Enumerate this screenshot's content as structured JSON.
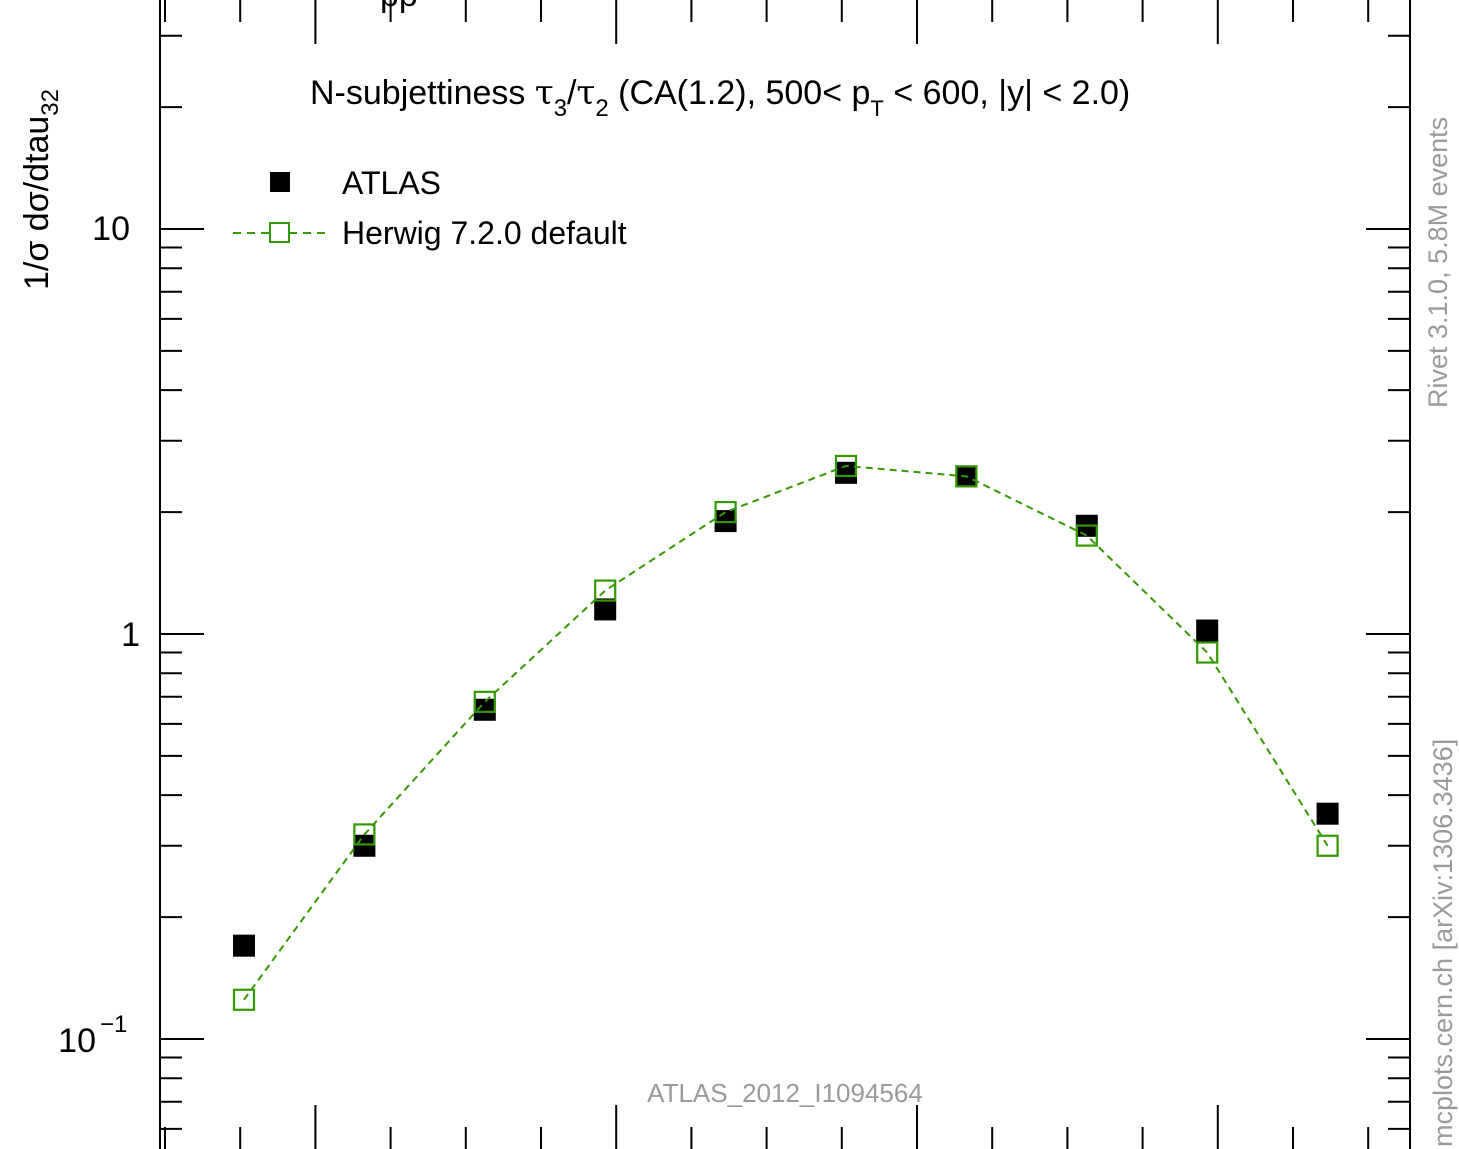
{
  "chart_data": {
    "type": "scatter",
    "title_top": "pp",
    "title": "N-subjettiness τ3/τ2 (CA(1.2), 500< pT < 600, |y| < 2.0)",
    "title_parts": {
      "lead": "N-subjettiness ",
      "tau": "τ",
      "sub3": "3",
      "slash": "/",
      "sub2": "2",
      "mid": " (CA(1.2), 500< p",
      "subT": "T",
      "tail": " < 600, |y| < 2.0)"
    },
    "ylabel": "1/σ dσ/dtau32",
    "ylabel_parts": {
      "main": "1/σ dσ/dtau",
      "sub": "32"
    },
    "yscale": "log",
    "ylim": [
      0.055,
      36
    ],
    "y_tick_labels": [
      {
        "value": 10,
        "label": "10",
        "sup": ""
      },
      {
        "value": 1,
        "label": "1",
        "sup": ""
      },
      {
        "value": 0.1,
        "label": "10",
        "sup": "−1"
      }
    ],
    "x_tick_labels": [],
    "xlim": [
      0.0,
      1.0
    ],
    "legend_position": "top-left",
    "series": [
      {
        "name": "ATLAS",
        "marker": "filled-square",
        "color": "#000000",
        "x": [
          0.05,
          0.15,
          0.25,
          0.35,
          0.45,
          0.55,
          0.65,
          0.75,
          0.85,
          0.95
        ],
        "values": [
          0.17,
          0.3,
          0.65,
          1.15,
          1.9,
          2.5,
          2.45,
          1.85,
          1.02,
          0.36
        ]
      },
      {
        "name": "Herwig 7.2.0 default",
        "marker": "open-square",
        "line": "dashed",
        "color": "#339900",
        "x": [
          0.05,
          0.15,
          0.25,
          0.35,
          0.45,
          0.55,
          0.65,
          0.75,
          0.85,
          0.95
        ],
        "values": [
          0.125,
          0.32,
          0.68,
          1.28,
          2.0,
          2.6,
          2.45,
          1.75,
          0.9,
          0.3
        ]
      }
    ]
  },
  "watermarks": {
    "analysis_id": "ATLAS_2012_I1094564",
    "right_top": "Rivet 3.1.0,  5.8M events",
    "right_bottom": "mcplots.cern.ch [arXiv:1306.3436]"
  },
  "colors": {
    "axis": "#000000",
    "herwig": "#339900",
    "watermark": "#9a9a9a"
  }
}
